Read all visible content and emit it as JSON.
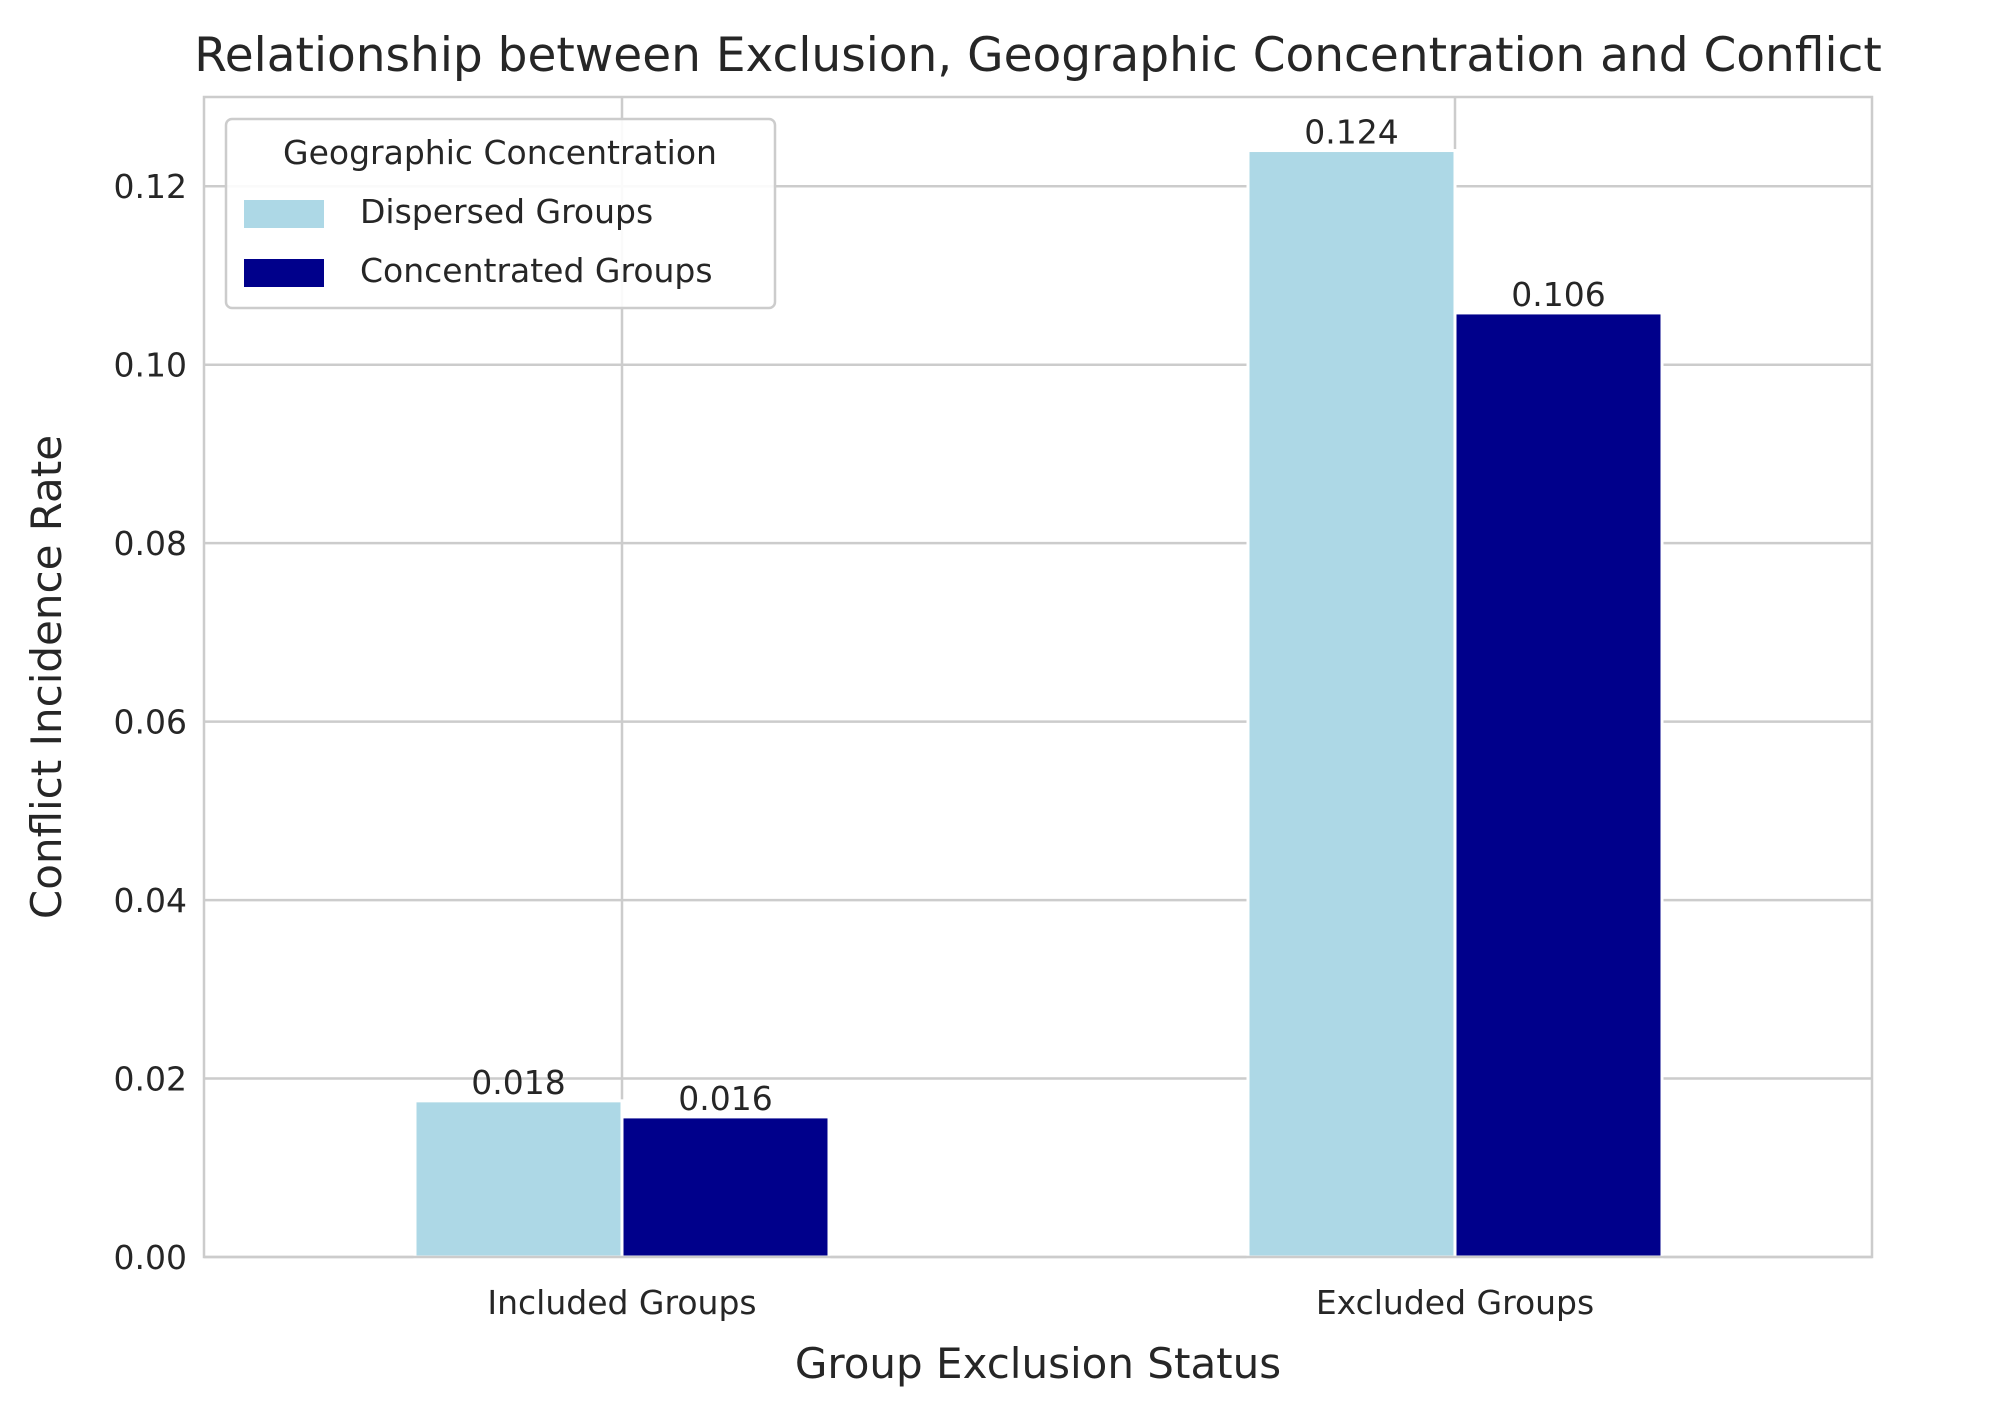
{
  "chart_data": {
    "type": "bar",
    "title": "Relationship between Exclusion, Geographic Concentration and Conflict",
    "xlabel": "Group Exclusion Status",
    "ylabel": "Conflict Incidence Rate",
    "categories": [
      "Included Groups",
      "Excluded Groups"
    ],
    "series": [
      {
        "name": "Dispersed Groups",
        "values": [
          0.0175,
          0.124
        ],
        "labels": [
          "0.018",
          "0.124"
        ],
        "color": "#add8e6"
      },
      {
        "name": "Concentrated Groups",
        "values": [
          0.0157,
          0.1058
        ],
        "labels": [
          "0.016",
          "0.106"
        ],
        "color": "#00008b"
      }
    ],
    "ylim": [
      0,
      0.13
    ],
    "yticks": [
      0.0,
      0.02,
      0.04,
      0.06,
      0.08,
      0.1,
      0.12
    ],
    "ytick_labels": [
      "0.00",
      "0.02",
      "0.04",
      "0.06",
      "0.08",
      "0.10",
      "0.12"
    ],
    "grid": true,
    "legend": {
      "title": "Geographic Concentration",
      "placement": "top-left"
    }
  }
}
